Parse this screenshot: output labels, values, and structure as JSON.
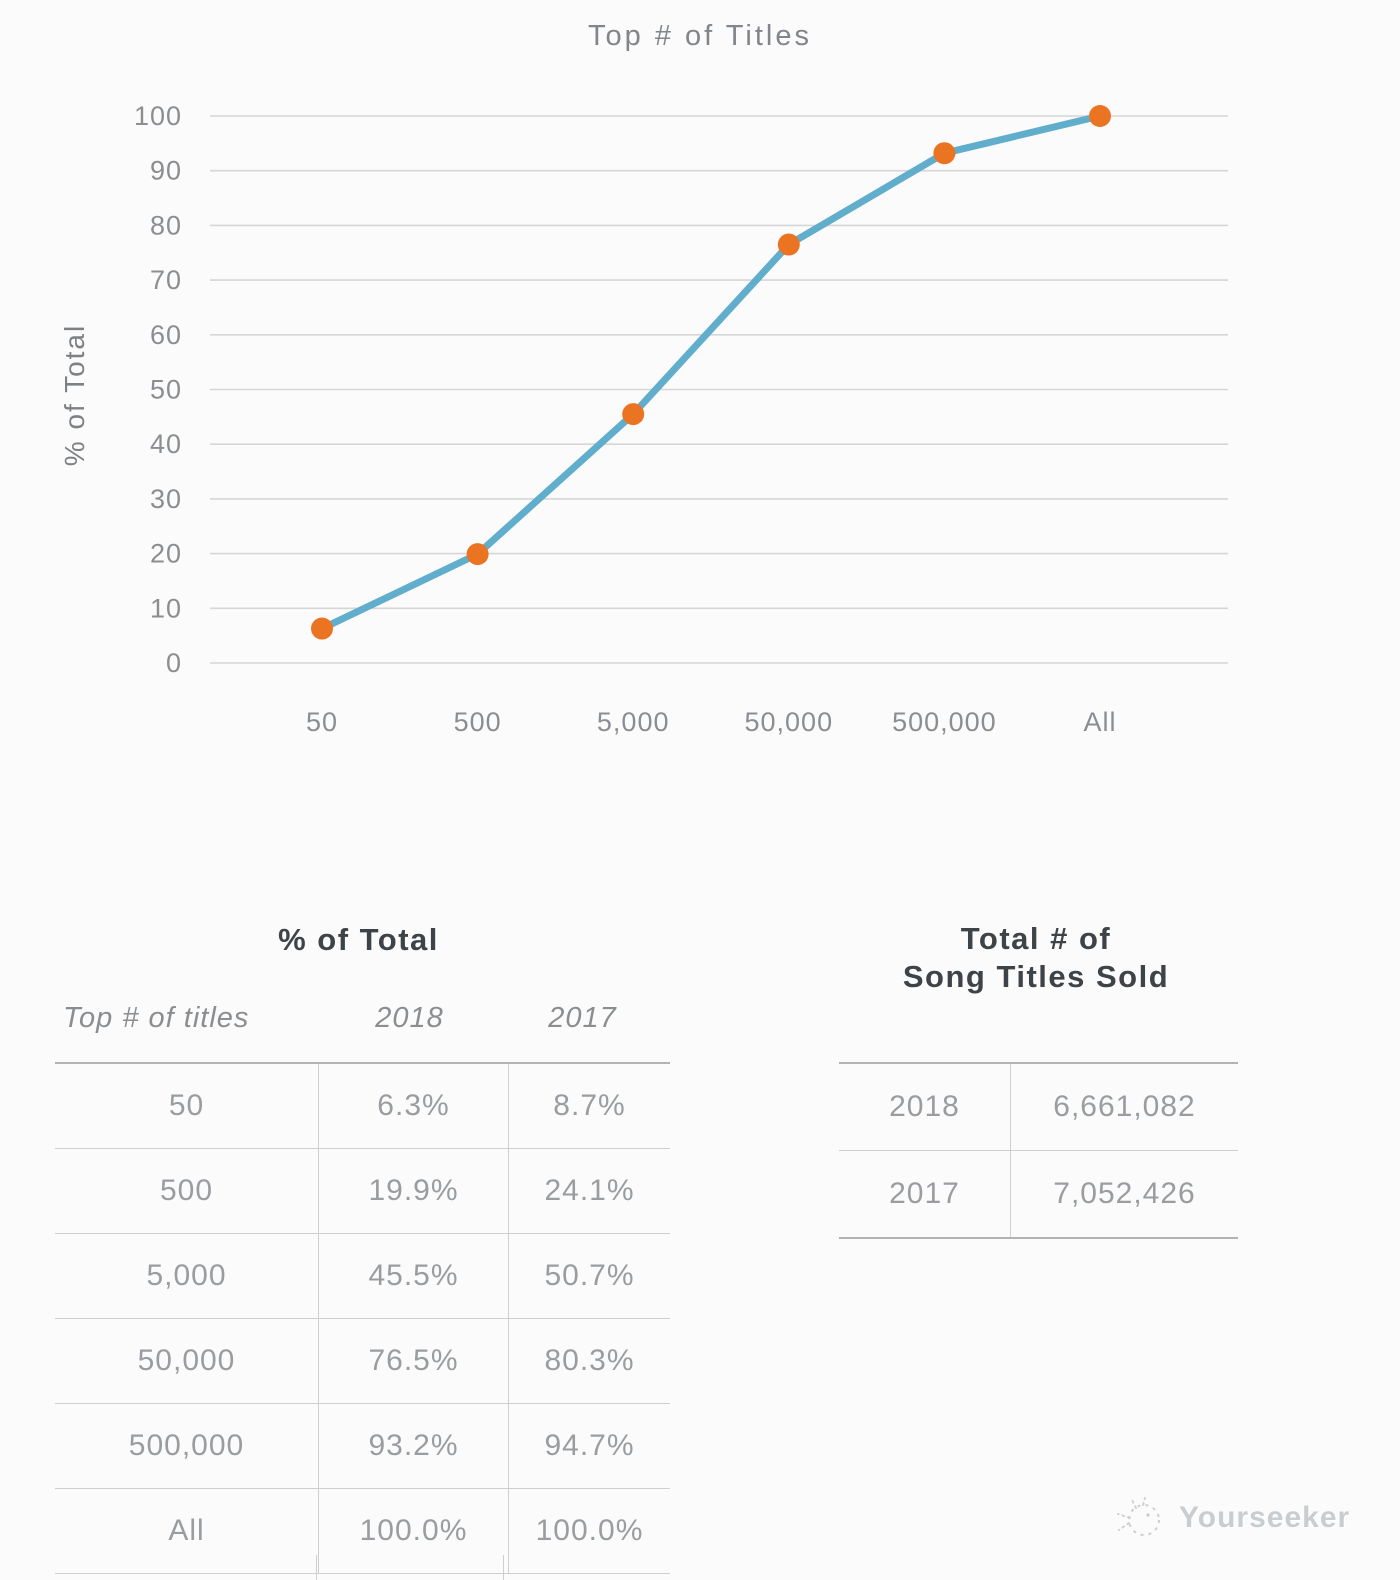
{
  "colors": {
    "background": "#fbfbfb",
    "line": "#61aecc",
    "marker": "#eb7423",
    "grid": "#d6d6d6",
    "axis_text": "#8b8e91",
    "title_text": "#828589",
    "table_head_text": "#3e4348",
    "table_body_text": "#9a9da0",
    "border": "#cfcfcf",
    "watermark": "#c9cdd0"
  },
  "chart_data": {
    "type": "line",
    "title": "Top # of Titles",
    "xlabel": "",
    "ylabel": "% of Total",
    "categories": [
      "50",
      "500",
      "5,000",
      "50,000",
      "500,000",
      "All"
    ],
    "series": [
      {
        "name": "2018",
        "values": [
          6.3,
          19.9,
          45.5,
          76.5,
          93.2,
          100.0
        ]
      }
    ],
    "ylim": [
      0,
      100
    ],
    "yticks": [
      0,
      10,
      20,
      30,
      40,
      50,
      60,
      70,
      80,
      90,
      100
    ],
    "grid": true,
    "legend": false
  },
  "percent_table": {
    "title": "% of Total",
    "columns": [
      "Top # of titles",
      "2018",
      "2017"
    ],
    "rows": [
      [
        "50",
        "6.3%",
        "8.7%"
      ],
      [
        "500",
        "19.9%",
        "24.1%"
      ],
      [
        "5,000",
        "45.5%",
        "50.7%"
      ],
      [
        "50,000",
        "76.5%",
        "80.3%"
      ],
      [
        "500,000",
        "93.2%",
        "94.7%"
      ],
      [
        "All",
        "100.0%",
        "100.0%"
      ]
    ]
  },
  "totals_table": {
    "title_line1": "Total # of",
    "title_line2": "Song Titles Sold",
    "rows": [
      [
        "2018",
        "6,661,082"
      ],
      [
        "2017",
        "7,052,426"
      ]
    ]
  },
  "watermark": {
    "label": "Yourseeker"
  }
}
